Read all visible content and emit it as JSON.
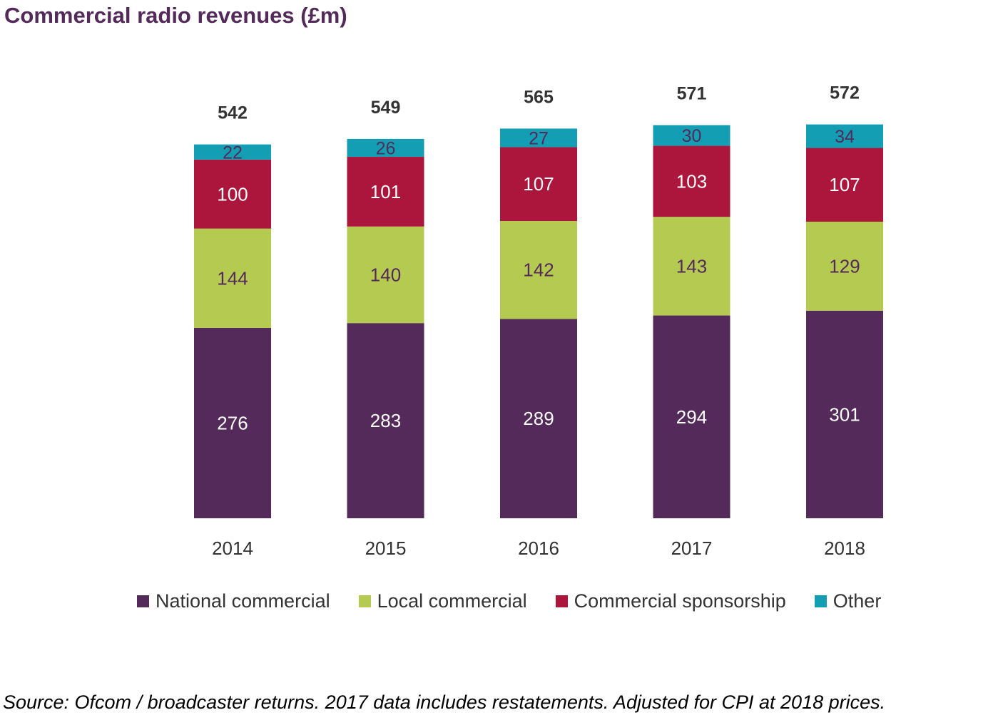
{
  "chart_data": {
    "type": "bar",
    "stacked": true,
    "title": "Commercial radio revenues (£m)",
    "xlabel": "",
    "ylabel": "",
    "categories": [
      "2014",
      "2015",
      "2016",
      "2017",
      "2018"
    ],
    "series": [
      {
        "name": "National commercial",
        "color": "#532a5a",
        "label_color": "#ffffff",
        "values": [
          276,
          283,
          289,
          294,
          301
        ]
      },
      {
        "name": "Local commercial",
        "color": "#b5ca51",
        "label_color": "#532a5a",
        "values": [
          144,
          140,
          142,
          143,
          129
        ]
      },
      {
        "name": "Commercial sponsorship",
        "color": "#ad163c",
        "label_color": "#ffffff",
        "values": [
          100,
          101,
          107,
          103,
          107
        ]
      },
      {
        "name": "Other",
        "color": "#139eb3",
        "label_color": "#532a5a",
        "values": [
          22,
          26,
          27,
          30,
          34
        ]
      }
    ],
    "totals": [
      542,
      549,
      565,
      571,
      572
    ],
    "ylim": [
      0,
      600
    ],
    "grid": false,
    "legend_position": "bottom",
    "source": "Source: Ofcom / broadcaster returns. 2017 data includes restatements. Adjusted for CPI at 2018 prices."
  }
}
